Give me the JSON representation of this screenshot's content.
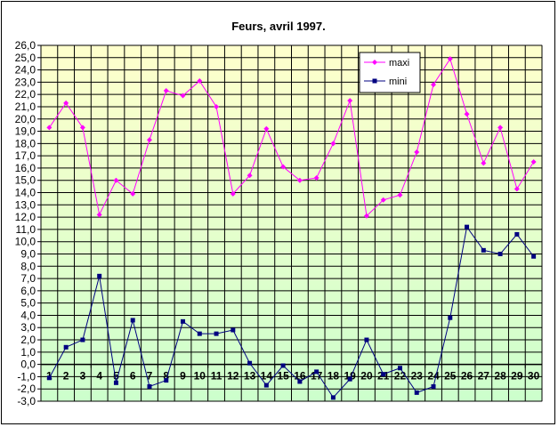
{
  "chart_data": {
    "type": "line",
    "title": "Feurs, avril 1997.",
    "xlabel": "",
    "ylabel": "",
    "categories": [
      "1",
      "2",
      "3",
      "4",
      "5",
      "6",
      "7",
      "8",
      "9",
      "10",
      "11",
      "12",
      "13",
      "14",
      "15",
      "16",
      "17",
      "18",
      "19",
      "20",
      "21",
      "22",
      "23",
      "24",
      "25",
      "26",
      "27",
      "28",
      "29",
      "30"
    ],
    "ylim": [
      -3.0,
      26.0
    ],
    "ytick_step": 1.0,
    "grid": true,
    "legend_position": "top-right",
    "background_gradient": [
      "#ffffcc",
      "#ccffcc"
    ],
    "series": [
      {
        "name": "maxi",
        "color": "#ff00ff",
        "marker": "diamond",
        "values": [
          19.3,
          21.3,
          19.3,
          12.2,
          15.0,
          13.9,
          18.3,
          22.3,
          21.9,
          23.1,
          21.0,
          13.9,
          15.4,
          19.2,
          16.1,
          15.0,
          15.2,
          18.0,
          21.5,
          12.1,
          13.4,
          13.8,
          17.3,
          22.8,
          24.9,
          20.4,
          16.4,
          19.3,
          14.3,
          16.5
        ]
      },
      {
        "name": "mini",
        "color": "#000080",
        "marker": "square",
        "values": [
          -1.1,
          1.4,
          2.0,
          7.2,
          -1.5,
          3.6,
          -1.8,
          -1.3,
          3.5,
          2.5,
          2.5,
          2.8,
          0.1,
          -1.7,
          -0.1,
          -1.4,
          -0.6,
          -2.7,
          -1.2,
          2.0,
          -0.8,
          -0.3,
          -2.3,
          -1.8,
          3.8,
          11.2,
          9.3,
          9.0,
          10.6,
          8.8
        ]
      }
    ]
  }
}
